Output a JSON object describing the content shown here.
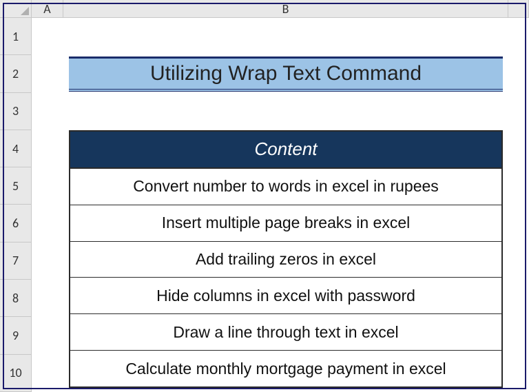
{
  "columns": [
    "A",
    "B"
  ],
  "row_numbers": [
    "1",
    "2",
    "3",
    "4",
    "5",
    "6",
    "7",
    "8",
    "9",
    "10"
  ],
  "title": {
    "text": "Utilizing Wrap Text Command",
    "background_color": "#9cc3e6",
    "border_color": "#1a2c6a",
    "text_color": "#222222",
    "fontsize": 30
  },
  "table": {
    "header": {
      "label": "Content",
      "background_color": "#16365c",
      "text_color": "#ffffff",
      "fontsize": 26
    },
    "rows": [
      "Convert number to words in excel in rupees",
      "Insert multiple page breaks in excel",
      "Add trailing zeros in excel",
      "Hide columns in excel with password",
      "Draw a line through text in excel",
      "Calculate monthly mortgage payment in excel"
    ],
    "row_background": "#ffffff",
    "row_text_color": "#111111",
    "border_color": "#2a2a2a",
    "fontsize": 23
  },
  "grid": {
    "header_background": "#e8e8e8",
    "header_border": "#c8c8c8",
    "cell_border": "#e0e0e0"
  },
  "frame_border_color": "#1a1a6a"
}
